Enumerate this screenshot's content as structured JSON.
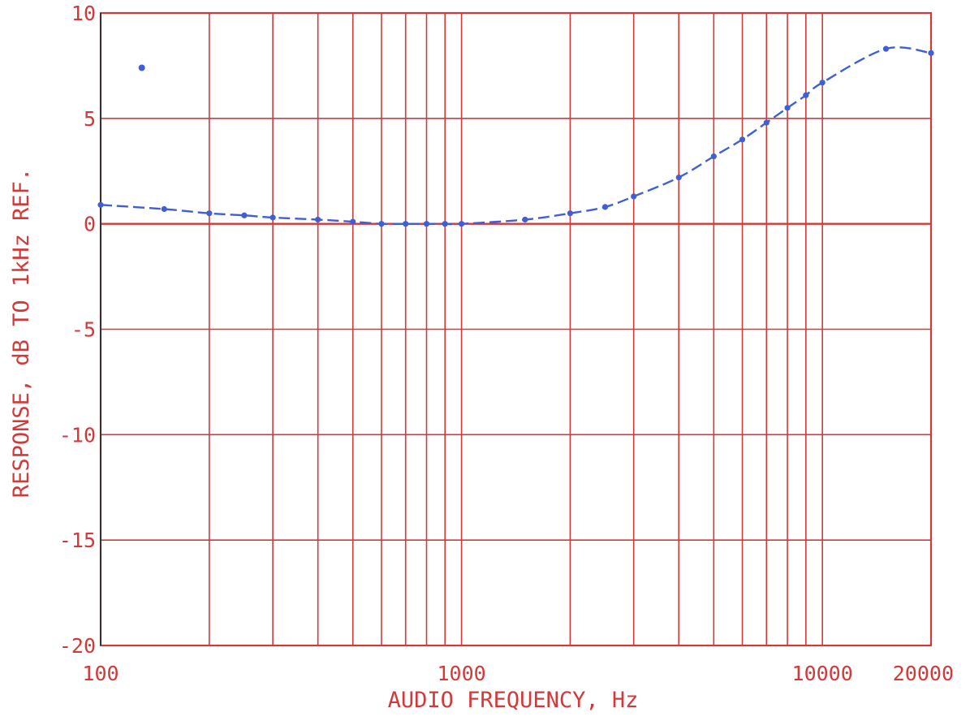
{
  "chart_data": {
    "type": "line",
    "title": "",
    "xlabel": "AUDIO FREQUENCY, Hz",
    "ylabel": "RESPONSE, dB TO 1kHz REF.",
    "x_scale": "log",
    "xlim": [
      100,
      20000
    ],
    "ylim": [
      -20,
      10
    ],
    "x_tick_labels": [
      "100",
      "1000",
      "10000",
      "20000"
    ],
    "x_ticks": [
      100,
      1000,
      10000,
      20000
    ],
    "y_ticks": [
      10,
      5,
      0,
      -5,
      -10,
      -15,
      -20
    ],
    "y_tick_labels": [
      "10",
      "5",
      "0",
      "-5",
      "-10",
      "-15",
      "-20"
    ],
    "grid": true,
    "grid_color": "#d23a3a",
    "series": [
      {
        "color": "#3f5fd6",
        "x": [
          100,
          150,
          200,
          250,
          300,
          400,
          500,
          600,
          700,
          800,
          900,
          1000,
          1500,
          2000,
          2500,
          3000,
          4000,
          5000,
          6000,
          7000,
          8000,
          9000,
          10000,
          15000,
          20000
        ],
        "y": [
          0.9,
          0.7,
          0.5,
          0.4,
          0.3,
          0.2,
          0.1,
          0.0,
          0.0,
          0.0,
          0.0,
          0.0,
          0.2,
          0.5,
          0.8,
          1.3,
          2.2,
          3.2,
          4.0,
          4.8,
          5.5,
          6.1,
          6.7,
          8.3,
          8.1
        ]
      }
    ],
    "annotations": [
      {
        "x": 130,
        "y": 7.4,
        "type": "point",
        "color": "#3f5fd6"
      }
    ]
  }
}
